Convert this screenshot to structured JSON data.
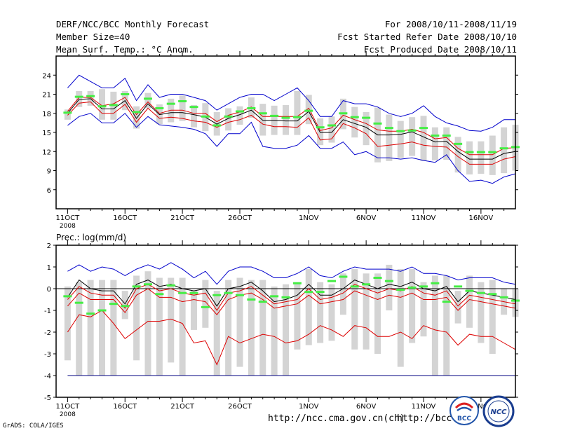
{
  "header": {
    "title": "DERF/NCC/BCC Monthly Forecast",
    "member_size": "Member Size=40",
    "variable": "Mean Surf. Temp.: °C Anom.",
    "period": "For 2008/10/11-2008/11/19",
    "started": "Fcst Started Refer Date 2008/10/10",
    "produced": "Fcst Produced Date 2008/10/11"
  },
  "footer": {
    "url1": "http://ncc.cma.gov.cn(ch)",
    "url2": "http://bcc.",
    "credit": "GrADS: COLA/IGES",
    "logo_bcc": "BCC",
    "logo_ncc": "NCC"
  },
  "colors": {
    "box": "#d4d4d4",
    "ens_mean": "#000000",
    "red_line": "#dd0000",
    "blue_line": "#0000cc",
    "green_mark": "#44ee44",
    "zero_line": "#000080"
  },
  "chart_data": [
    {
      "type": "line",
      "panel": "temperature",
      "title": "",
      "ylabel": "",
      "ylim": [
        3,
        27
      ],
      "yticks": [
        6,
        9,
        12,
        15,
        18,
        21,
        24
      ],
      "xlim": [
        0,
        40
      ],
      "xticks": [
        {
          "day": 1,
          "label": "11OCT"
        },
        {
          "day": 6,
          "label": "16OCT"
        },
        {
          "day": 11,
          "label": "21OCT"
        },
        {
          "day": 16,
          "label": "26OCT"
        },
        {
          "day": 22,
          "label": "1NOV"
        },
        {
          "day": 27,
          "label": "6NOV"
        },
        {
          "day": 32,
          "label": "11NOV"
        },
        {
          "day": 37,
          "label": "16NOV"
        }
      ],
      "year_label": "2008",
      "x": [
        1,
        2,
        3,
        4,
        5,
        6,
        7,
        8,
        9,
        10,
        11,
        12,
        13,
        14,
        15,
        16,
        17,
        18,
        19,
        20,
        21,
        22,
        23,
        24,
        25,
        26,
        27,
        28,
        29,
        30,
        31,
        32,
        33,
        34,
        35,
        36,
        37,
        38,
        39,
        40
      ],
      "series": [
        {
          "name": "max",
          "color": "blue_line",
          "values": [
            22,
            24,
            23,
            22,
            22,
            23.5,
            20,
            22.5,
            20.5,
            21,
            21,
            20.5,
            20,
            18.5,
            19.5,
            20.5,
            21,
            21,
            20,
            21,
            22,
            20,
            17.5,
            17.5,
            20,
            19.5,
            19.5,
            19,
            18,
            17.5,
            18,
            19.2,
            17.5,
            16.5,
            16,
            15.3,
            15.2,
            15.8,
            17,
            17
          ]
        },
        {
          "name": "upper",
          "color": "red_line",
          "values": [
            18.3,
            20.5,
            20.5,
            19.2,
            19.5,
            20.5,
            17.8,
            19.8,
            18,
            18.5,
            18.5,
            18,
            18,
            16.7,
            17.7,
            18.2,
            19,
            17.5,
            17.5,
            17.5,
            17.5,
            18.8,
            15.3,
            15.7,
            17.7,
            17,
            16.4,
            15.4,
            15.2,
            15.2,
            15.5,
            15,
            14,
            14.2,
            12.5,
            11.5,
            11.5,
            11.5,
            12.5,
            12.6
          ]
        },
        {
          "name": "ens_mean",
          "color": "ens_mean",
          "values": [
            18,
            20.2,
            20.3,
            18.7,
            18.7,
            20,
            17.2,
            19.5,
            17.8,
            18.1,
            18.1,
            17.8,
            17.4,
            16.3,
            17.2,
            17.8,
            18.5,
            16.9,
            16.9,
            16.8,
            16.8,
            18.3,
            15,
            15,
            17,
            16.4,
            15.8,
            14.6,
            14.6,
            14.7,
            15.1,
            14.3,
            13.5,
            13.6,
            12,
            10.8,
            10.8,
            10.8,
            11.7,
            12
          ]
        },
        {
          "name": "lower",
          "color": "red_line",
          "values": [
            17.7,
            19.6,
            19.8,
            18,
            18,
            19.4,
            16.6,
            18.8,
            17.2,
            17.4,
            17.2,
            16.8,
            16.6,
            15.8,
            16.6,
            17,
            17.7,
            16.3,
            15.9,
            15.9,
            15.8,
            17.3,
            13.8,
            14,
            16.4,
            15.7,
            14.8,
            12.8,
            13,
            13.2,
            13.5,
            13,
            12.8,
            12.7,
            11.2,
            10,
            10,
            10,
            10.8,
            11.2
          ]
        },
        {
          "name": "min",
          "color": "blue_line",
          "values": [
            16.1,
            17.5,
            18,
            16.5,
            16.5,
            18,
            15.8,
            17.5,
            16.2,
            16,
            15.8,
            15.5,
            14.8,
            12.8,
            14.8,
            14.8,
            16.6,
            12.8,
            12.5,
            12.5,
            13,
            14.5,
            12.5,
            12.5,
            13.5,
            11.5,
            12,
            11,
            11,
            10.8,
            11,
            10.6,
            10.3,
            11.5,
            9,
            7.3,
            7.5,
            7,
            8,
            8.5
          ]
        }
      ],
      "box_low": [
        17,
        19,
        19.2,
        17,
        17,
        18.5,
        15.6,
        18.8,
        16.3,
        16.6,
        16.8,
        15.8,
        15.2,
        14.5,
        15.3,
        16.2,
        17.3,
        14.5,
        14.6,
        14.6,
        14.6,
        16.3,
        13,
        13.4,
        15.5,
        14.2,
        13,
        10.3,
        10.5,
        11,
        11.3,
        10.5,
        10.6,
        10.7,
        8.7,
        8.4,
        8.5,
        8.3,
        8.6,
        9
      ],
      "box_high": [
        18.6,
        21.5,
        21.5,
        21.8,
        21.4,
        21.5,
        19.1,
        21.2,
        19.4,
        20.3,
        20.8,
        19.3,
        19.6,
        18.2,
        18.8,
        19.1,
        20.5,
        19.5,
        19.2,
        19.3,
        21.5,
        20.9,
        17.2,
        17.5,
        20.3,
        19,
        18.2,
        18.9,
        17.8,
        16.8,
        17.4,
        17.6,
        15.8,
        15.8,
        14.3,
        13.6,
        13.6,
        14.5,
        15.8,
        16.2
      ],
      "green": [
        18.1,
        20.6,
        20.7,
        19.1,
        19.3,
        21,
        18.2,
        20.3,
        18.8,
        19.5,
        19.9,
        19,
        17.5,
        16.1,
        17.5,
        18.3,
        18.8,
        18,
        17.6,
        17.3,
        17.4,
        18.4,
        15.8,
        16.1,
        18,
        17.4,
        17.3,
        16.4,
        15.7,
        15.2,
        15.3,
        15.7,
        14.5,
        14.5,
        13.2,
        11.9,
        11.9,
        11.9,
        12.5,
        12.7
      ]
    },
    {
      "type": "line",
      "panel": "precipitation",
      "title": "Prec.: log(mm/d)",
      "ylabel": "",
      "ylim": [
        -5,
        2
      ],
      "yticks": [
        -5,
        -4,
        -3,
        -2,
        -1,
        0,
        1,
        2
      ],
      "xlim": [
        0,
        40
      ],
      "xticks": [
        {
          "day": 1,
          "label": "11OCT"
        },
        {
          "day": 6,
          "label": "16OCT"
        },
        {
          "day": 11,
          "label": "21OCT"
        },
        {
          "day": 16,
          "label": "26OCT"
        },
        {
          "day": 22,
          "label": "1NOV"
        },
        {
          "day": 27,
          "label": "6NOV"
        },
        {
          "day": 32,
          "label": "11NOV"
        },
        {
          "day": 37,
          "label": "16NOV"
        }
      ],
      "year_label": "2008",
      "x": [
        1,
        2,
        3,
        4,
        5,
        6,
        7,
        8,
        9,
        10,
        11,
        12,
        13,
        14,
        15,
        16,
        17,
        18,
        19,
        20,
        21,
        22,
        23,
        24,
        25,
        26,
        27,
        28,
        29,
        30,
        31,
        32,
        33,
        34,
        35,
        36,
        37,
        38,
        39,
        40
      ],
      "series": [
        {
          "name": "max",
          "color": "blue_line",
          "values": [
            0.8,
            1.1,
            0.8,
            1,
            0.9,
            0.6,
            0.9,
            1.1,
            0.9,
            1.2,
            0.9,
            0.5,
            0.8,
            0.2,
            0.8,
            1,
            1,
            0.8,
            0.5,
            0.5,
            0.7,
            1,
            0.6,
            0.5,
            0.8,
            1,
            0.9,
            0.9,
            0.9,
            0.8,
            1,
            0.7,
            0.7,
            0.6,
            0.4,
            0.5,
            0.5,
            0.5,
            0.3,
            0.2
          ]
        },
        {
          "name": "ens_mean",
          "color": "ens_mean",
          "values": [
            -0.4,
            0.4,
            0,
            -0.1,
            -0.1,
            -0.7,
            0.2,
            0.4,
            0.1,
            0.2,
            0,
            -0.1,
            0,
            -0.8,
            0,
            0.1,
            0.3,
            -0.1,
            -0.6,
            -0.5,
            -0.3,
            0.2,
            -0.3,
            -0.3,
            0,
            0.4,
            0.2,
            0,
            0.2,
            0.1,
            0.3,
            0,
            -0.1,
            0.1,
            -0.6,
            -0.1,
            -0.2,
            -0.3,
            -0.4,
            -0.5
          ]
        },
        {
          "name": "upper",
          "color": "red_line",
          "values": [
            -0.5,
            0.1,
            -0.2,
            -0.3,
            -0.3,
            -0.9,
            0,
            0.2,
            -0.1,
            0,
            -0.2,
            -0.3,
            -0.2,
            -1,
            -0.2,
            -0.1,
            0.1,
            -0.3,
            -0.7,
            -0.6,
            -0.5,
            0,
            -0.5,
            -0.4,
            -0.2,
            0.2,
            0,
            -0.2,
            0,
            -0.1,
            0.1,
            -0.2,
            -0.3,
            -0.1,
            -0.8,
            -0.3,
            -0.4,
            -0.5,
            -0.6,
            -0.7
          ]
        },
        {
          "name": "lower",
          "color": "red_line",
          "values": [
            -0.8,
            -0.2,
            -0.5,
            -0.5,
            -0.5,
            -1.1,
            -0.3,
            0,
            -0.4,
            -0.4,
            -0.6,
            -0.5,
            -0.6,
            -1.2,
            -0.5,
            -0.3,
            -0.2,
            -0.5,
            -0.9,
            -0.8,
            -0.7,
            -0.3,
            -0.7,
            -0.6,
            -0.5,
            -0.1,
            -0.3,
            -0.5,
            -0.3,
            -0.4,
            -0.2,
            -0.5,
            -0.5,
            -0.4,
            -1,
            -0.5,
            -0.6,
            -0.7,
            -0.8,
            -0.9
          ]
        },
        {
          "name": "min",
          "color": "red_line",
          "values": [
            -2,
            -1.2,
            -1.3,
            -1,
            -1.6,
            -2.3,
            -1.9,
            -1.5,
            -1.5,
            -1.4,
            -1.6,
            -2.5,
            -2.4,
            -3.5,
            -2.2,
            -2.5,
            -2.3,
            -2.1,
            -2.2,
            -2.5,
            -2.4,
            -2.1,
            -1.7,
            -1.9,
            -2.2,
            -1.7,
            -1.8,
            -2.2,
            -2.2,
            -2,
            -2.3,
            -1.7,
            -1.9,
            -2,
            -2.6,
            -2.1,
            -2.2,
            -2.2,
            -2.5,
            -2.8
          ]
        },
        {
          "name": "floor",
          "color": "zero_line",
          "values": [
            -4,
            -4,
            -4,
            -4,
            -4,
            -4,
            -4,
            -4,
            -4,
            -4,
            -4,
            -4,
            -4,
            -4,
            -4,
            -4,
            -4,
            -4,
            -4,
            -4,
            -4,
            -4,
            -4,
            -4,
            -4,
            -4,
            -4,
            -4,
            -4,
            -4,
            -4,
            -4,
            -4,
            -4,
            -4,
            -4,
            -4,
            -4,
            -4,
            -4
          ]
        }
      ],
      "box_low": [
        -3.3,
        -4,
        -4,
        -4,
        -4,
        -1.4,
        -3.3,
        -4,
        -4,
        -3.4,
        -4,
        -1.9,
        -1.8,
        -4,
        -4,
        -3.6,
        -4,
        -4,
        -4,
        -4,
        -2.8,
        -2.6,
        -2.5,
        -2.4,
        -1.2,
        -2.8,
        -2.8,
        -3,
        -1,
        -3.6,
        -2.5,
        -2.2,
        -4,
        -4,
        -1.6,
        -1.8,
        -2.5,
        -3,
        -1.2,
        -1.3
      ],
      "box_high": [
        0.1,
        0.3,
        0.4,
        0.4,
        0.4,
        -0.1,
        0.6,
        0.8,
        0.5,
        0.5,
        0.5,
        -0.1,
        0.4,
        -0.1,
        0.4,
        0.5,
        0.4,
        0.4,
        0.1,
        0.2,
        0.3,
        0.9,
        0.3,
        0.2,
        0.7,
        0.9,
        0.7,
        0.7,
        1.1,
        0.9,
        0.9,
        0.3,
        0.6,
        0.6,
        -0.1,
        0.6,
        0.3,
        0.4,
        0,
        0
      ],
      "green": [
        -0.35,
        -0.65,
        -1.15,
        -1,
        -0.7,
        -0.8,
        0.1,
        0.2,
        -0.25,
        0.15,
        -0.2,
        -0.2,
        -0.85,
        -0.3,
        -0.2,
        -0.3,
        -0.5,
        -0.6,
        -0.35,
        -0.4,
        0.25,
        -0.15,
        -0.15,
        0.35,
        0.55,
        0.1,
        0.2,
        0.5,
        0.35,
        -0.05,
        0.05,
        0.1,
        0.25,
        -0.6,
        0.1,
        -0.1,
        -0.2,
        -0.25,
        -0.4,
        -0.55
      ]
    }
  ]
}
